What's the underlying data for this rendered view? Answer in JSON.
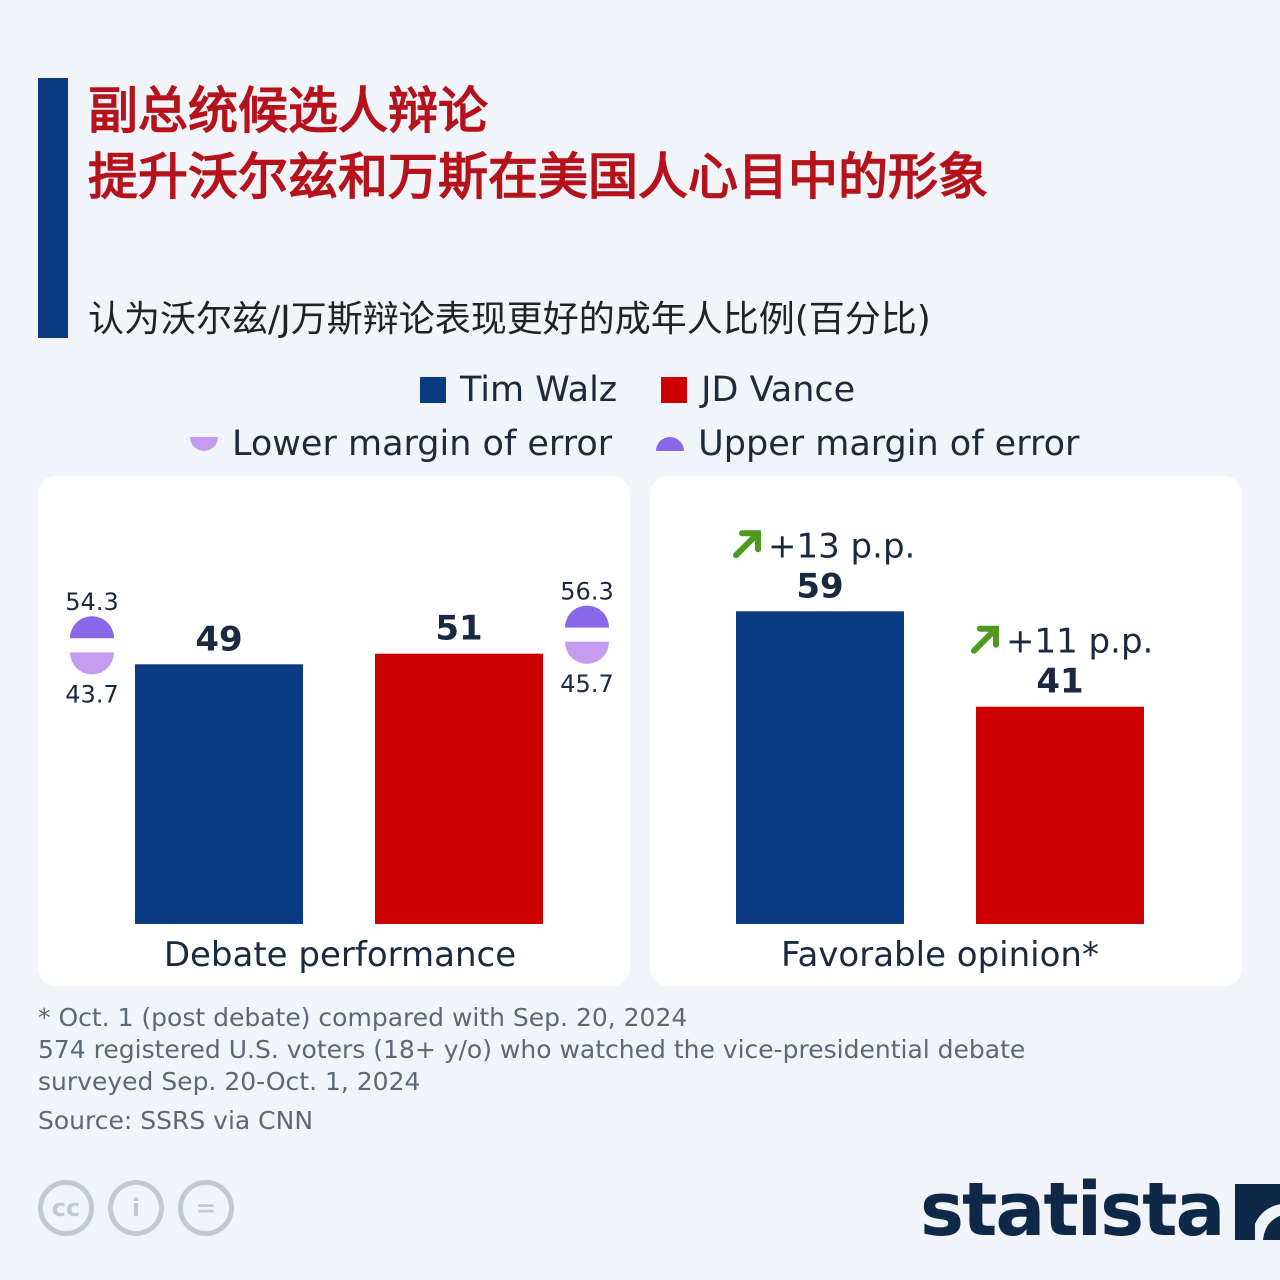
{
  "title": {
    "line1": "副总统候选人辩论",
    "line2": "提升沃尔兹和万斯在美国人心目中的形象"
  },
  "subtitle": "认为沃尔兹/J万斯辩论表现更好的成年人比例(百分比)",
  "legend": {
    "walz": "Tim Walz",
    "vance": "JD Vance",
    "lower": "Lower margin of error",
    "upper": "Upper margin of error"
  },
  "colors": {
    "walz": "#0a3a82",
    "vance": "#cc0000",
    "upper_moe": "#8a67e8",
    "lower_moe": "#c69cf0",
    "arrow": "#4f9a1d",
    "accent": "#b5121b"
  },
  "chart_data": [
    {
      "type": "bar",
      "title": "Debate performance",
      "categories": [
        "Tim Walz",
        "JD Vance"
      ],
      "values": [
        49,
        51
      ],
      "upper_margin": [
        54.3,
        56.3
      ],
      "lower_margin": [
        43.7,
        45.7
      ],
      "value_labels": [
        "49",
        "51"
      ],
      "upper_labels": [
        "54.3",
        "56.3"
      ],
      "lower_labels": [
        "43.7",
        "45.7"
      ],
      "ylim": [
        0,
        100
      ]
    },
    {
      "type": "bar",
      "title": "Favorable opinion*",
      "categories": [
        "Tim Walz",
        "JD Vance"
      ],
      "values": [
        59,
        41
      ],
      "value_labels": [
        "59",
        "41"
      ],
      "changes": [
        "+13 p.p.",
        "+11 p.p."
      ],
      "ylim": [
        0,
        100
      ]
    }
  ],
  "footnotes": [
    "* Oct. 1 (post debate) compared with Sep. 20, 2024",
    "574 registered U.S. voters (18+ y/o) who watched the vice-presidential debate",
    "surveyed Sep. 20-Oct. 1, 2024"
  ],
  "source": "Source: SSRS via CNN",
  "brand": "statista",
  "license_icons": [
    "cc-icon",
    "attribution-icon",
    "no-derivatives-icon"
  ],
  "license_glyphs": [
    "cc",
    "i",
    "="
  ]
}
